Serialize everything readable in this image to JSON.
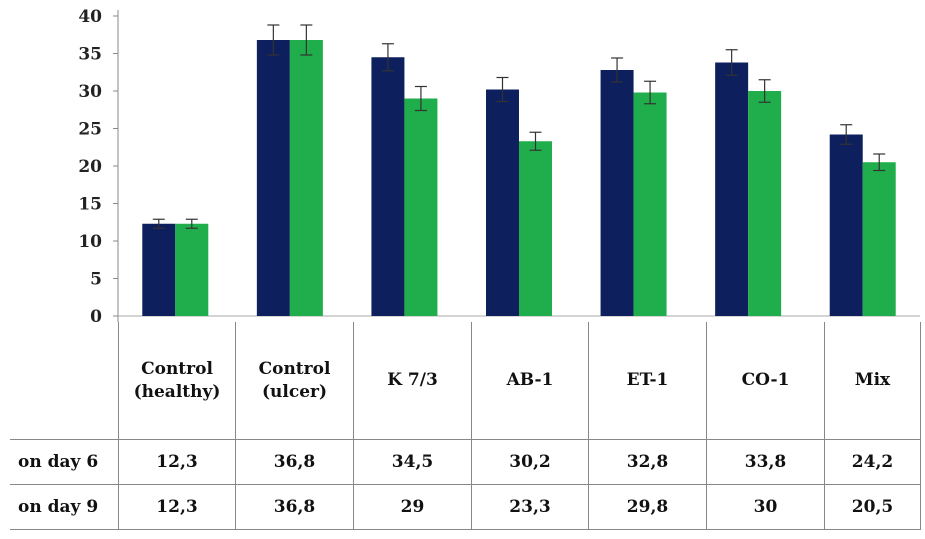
{
  "chart_data": {
    "type": "bar",
    "categories": [
      "Control (healthy)",
      "Control (ulcer)",
      "K 7/3",
      "AB-1",
      "ET-1",
      "CO-1",
      "Mix"
    ],
    "category_lines": [
      [
        "Control",
        "(healthy)"
      ],
      [
        "Control",
        "(ulcer)"
      ],
      [
        "K 7/3"
      ],
      [
        "AB-1"
      ],
      [
        "ET-1"
      ],
      [
        "CO-1"
      ],
      [
        "Mix"
      ]
    ],
    "series": [
      {
        "name": "on day 6",
        "values": [
          12.3,
          36.8,
          34.5,
          30.2,
          32.8,
          33.8,
          24.2
        ],
        "errors": [
          0.6,
          2.0,
          1.8,
          1.6,
          1.6,
          1.7,
          1.3
        ],
        "color": "#0d1f5c"
      },
      {
        "name": "on day 9",
        "values": [
          12.3,
          36.8,
          29,
          23.3,
          29.8,
          30,
          20.5
        ],
        "errors": [
          0.6,
          2.0,
          1.6,
          1.2,
          1.5,
          1.5,
          1.1
        ],
        "color": "#1fae4b"
      }
    ],
    "table_values": [
      [
        "12,3",
        "36,8",
        "34,5",
        "30,2",
        "32,8",
        "33,8",
        "24,2"
      ],
      [
        "12,3",
        "36,8",
        "29",
        "23,3",
        "29,8",
        "30",
        "20,5"
      ]
    ],
    "yticks": [
      "0",
      "5",
      "10",
      "15",
      "20",
      "25",
      "30",
      "35",
      "40"
    ],
    "ylim": [
      0,
      40
    ],
    "grid": false,
    "legend": "table",
    "title": "",
    "xlabel": "",
    "ylabel": ""
  }
}
